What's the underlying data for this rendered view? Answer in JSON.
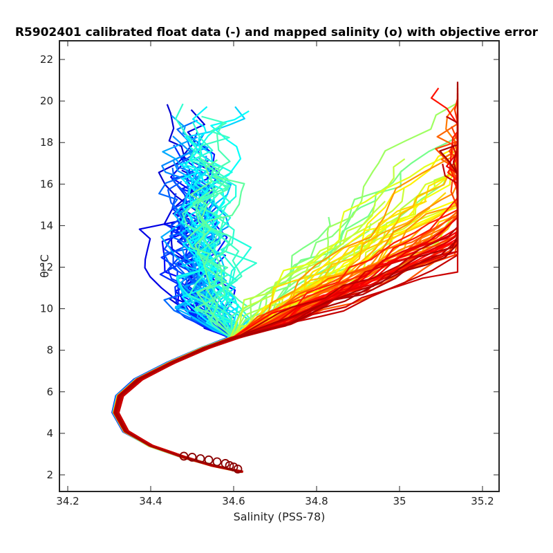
{
  "chart_data": {
    "type": "line",
    "title": "R5902401 calibrated float data (-) and mapped salinity (o) with objective error",
    "xlabel": "Salinity (PSS-78)",
    "ylabel": "θ °C",
    "xlim": [
      34.18,
      35.24
    ],
    "ylim": [
      1.2,
      22.9
    ],
    "xticks": [
      34.2,
      34.4,
      34.6,
      34.8,
      35,
      35.2
    ],
    "xtick_labels": [
      "34.2",
      "34.4",
      "34.6",
      "34.8",
      "35",
      "35.2"
    ],
    "yticks": [
      2,
      4,
      6,
      8,
      10,
      12,
      14,
      16,
      18,
      20,
      22
    ],
    "ytick_labels": [
      "2",
      "4",
      "6",
      "8",
      "10",
      "12",
      "14",
      "16",
      "18",
      "20",
      "22"
    ],
    "grid": false,
    "colormap": "jet",
    "series_note": "Each float profile is one line; color goes from blue (early cycles) to dark red (late cycles).",
    "deep_curve": [
      {
        "x": 34.62,
        "y": 2.15
      },
      {
        "x": 34.55,
        "y": 2.45
      },
      {
        "x": 34.48,
        "y": 2.85
      },
      {
        "x": 34.4,
        "y": 3.4
      },
      {
        "x": 34.34,
        "y": 4.1
      },
      {
        "x": 34.315,
        "y": 5.0
      },
      {
        "x": 34.325,
        "y": 5.8
      },
      {
        "x": 34.37,
        "y": 6.6
      },
      {
        "x": 34.45,
        "y": 7.4
      },
      {
        "x": 34.53,
        "y": 8.1
      },
      {
        "x": 34.6,
        "y": 8.6
      }
    ],
    "mapped_points": [
      {
        "x": 34.48,
        "y": 2.9
      },
      {
        "x": 34.5,
        "y": 2.85
      },
      {
        "x": 34.52,
        "y": 2.78
      },
      {
        "x": 34.54,
        "y": 2.72
      },
      {
        "x": 34.56,
        "y": 2.63
      },
      {
        "x": 34.58,
        "y": 2.55
      },
      {
        "x": 34.59,
        "y": 2.45
      },
      {
        "x": 34.6,
        "y": 2.38
      },
      {
        "x": 34.61,
        "y": 2.28
      }
    ],
    "upper_water_envelope": {
      "early_profiles": {
        "salinity_range": [
          34.38,
          34.7
        ],
        "theta_range": [
          8.6,
          20.0
        ]
      },
      "late_profiles": {
        "salinity_range": [
          34.55,
          35.14
        ],
        "theta_range": [
          8.6,
          21.0
        ]
      }
    },
    "colors": {
      "blue": "#00008f",
      "cyan": "#00e0ff",
      "green": "#80ff80",
      "yellow": "#ffff00",
      "orange": "#ffa500",
      "red": "#ff0000",
      "dark_red": "#800000"
    }
  }
}
